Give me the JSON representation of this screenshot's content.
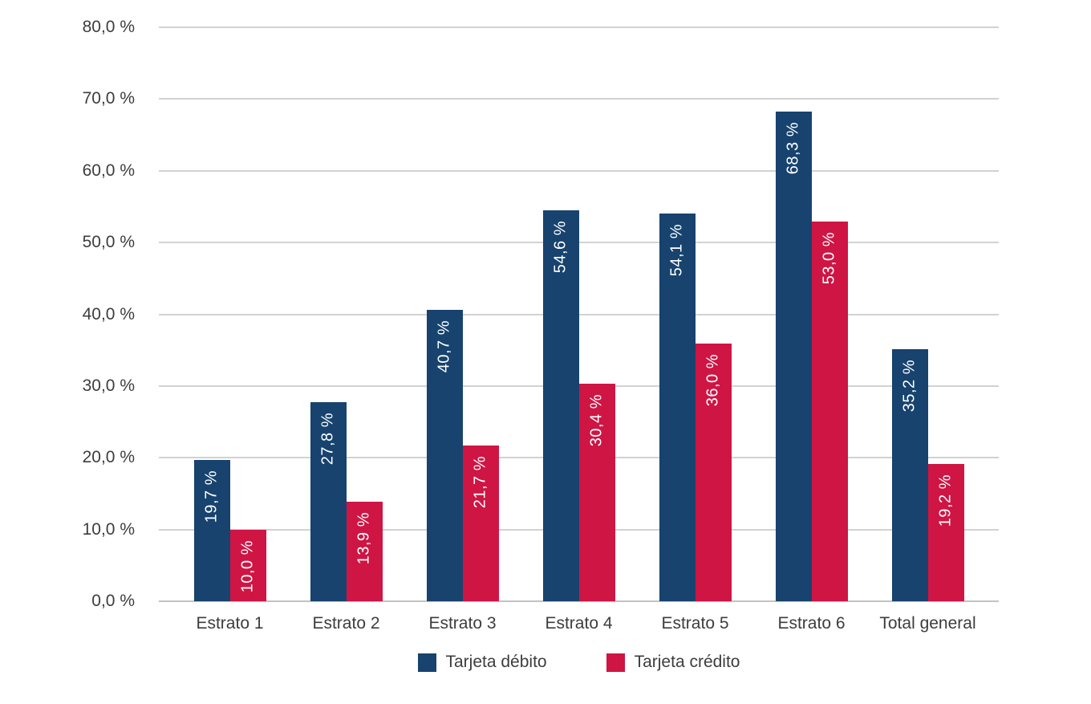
{
  "chart_data": {
    "type": "bar",
    "title": "",
    "categories": [
      "Estrato 1",
      "Estrato 2",
      "Estrato 3",
      "Estrato 4",
      "Estrato 5",
      "Estrato 6",
      "Total general"
    ],
    "series": [
      {
        "name": "Tarjeta débito",
        "color": "#17436e",
        "values": [
          19.7,
          27.8,
          40.7,
          54.6,
          54.1,
          68.3,
          35.2
        ],
        "value_labels": [
          "19,7 %",
          "27,8 %",
          "40,7 %",
          "54,6 %",
          "54,1 %",
          "68,3 %",
          "35,2 %"
        ]
      },
      {
        "name": "Tarjeta crédito",
        "color": "#ce1544",
        "values": [
          10.0,
          13.9,
          21.7,
          30.4,
          36.0,
          53.0,
          19.2
        ],
        "value_labels": [
          "10,0 %",
          "13,9 %",
          "21,7 %",
          "30,4 %",
          "36,0 %",
          "53,0 %",
          "19,2 %"
        ]
      }
    ],
    "ylim": [
      0,
      80
    ],
    "yticks": {
      "values": [
        0,
        10,
        20,
        30,
        40,
        50,
        60,
        70,
        80
      ],
      "labels": [
        "0,0 %",
        "10,0 %",
        "20,0 %",
        "30,0 %",
        "40,0 %",
        "50,0 %",
        "60,0 %",
        "70,0 %",
        "80,0 %"
      ]
    },
    "grid": true,
    "legend_position": "bottom",
    "value_label_color": "#ffffff",
    "axis_text_color": "#3d3d3d",
    "gridline_color": "#d2d2d2",
    "background_color": "#ffffff",
    "xlabel": "",
    "ylabel": ""
  }
}
